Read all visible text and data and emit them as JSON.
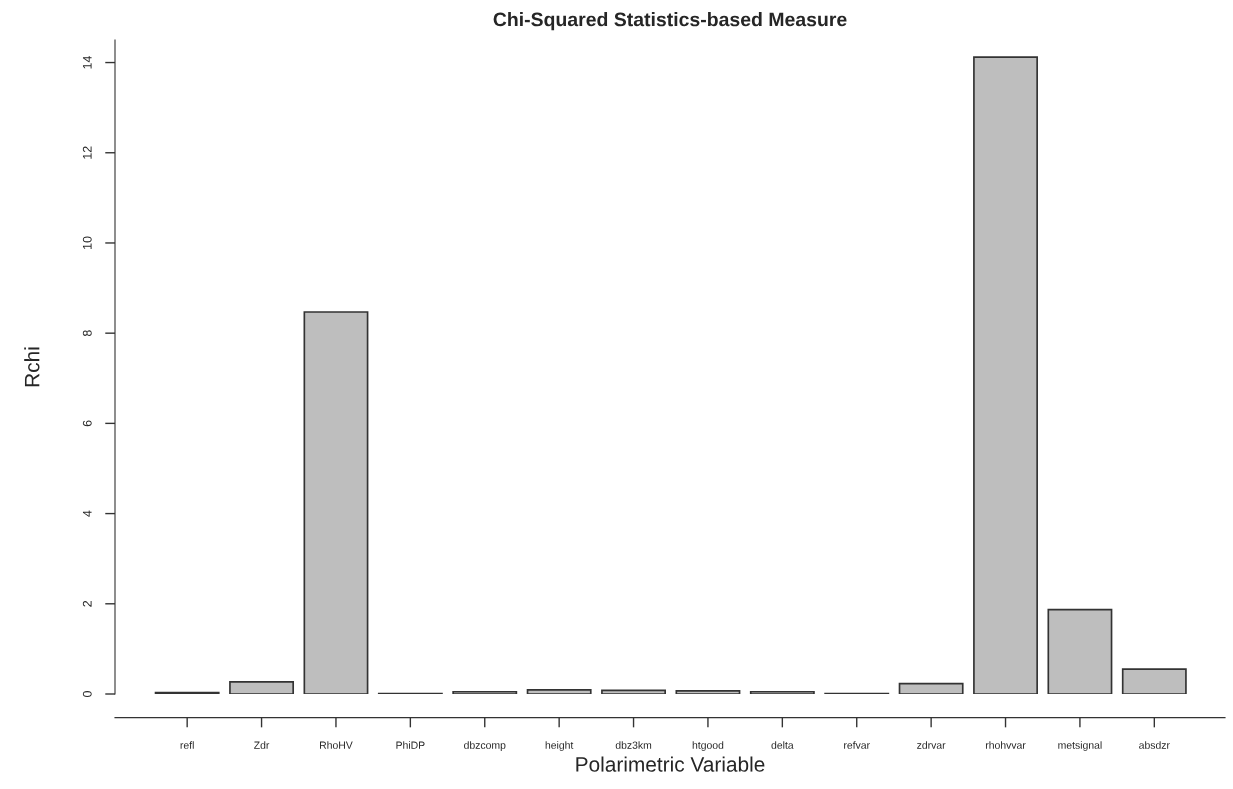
{
  "chart_data": {
    "type": "bar",
    "title": "Chi-Squared Statistics-based Measure",
    "xlabel": "Polarimetric Variable",
    "ylabel": "Rchi",
    "categories": [
      "refl",
      "Zdr",
      "RhoHV",
      "PhiDP",
      "dbzcomp",
      "height",
      "dbz3km",
      "htgood",
      "delta",
      "refvar",
      "zdrvar",
      "rhohvvar",
      "metsignal",
      "absdzr"
    ],
    "values": [
      0.03,
      0.27,
      8.47,
      0.01,
      0.05,
      0.09,
      0.08,
      0.07,
      0.05,
      0.01,
      0.23,
      14.12,
      1.87,
      0.55
    ],
    "color": "#bebebe",
    "ylim": [
      0,
      14.5
    ],
    "yticks": [
      0,
      2,
      4,
      6,
      8,
      10,
      12,
      14
    ],
    "grid": false
  }
}
